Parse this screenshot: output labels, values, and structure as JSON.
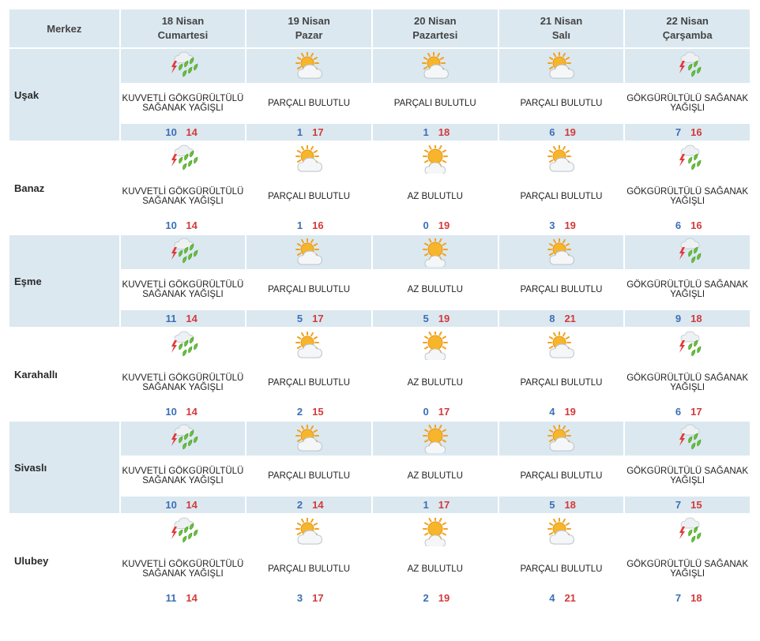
{
  "header": {
    "city_label": "Merkez",
    "days": [
      {
        "date": "18 Nisan",
        "weekday": "Cumartesi"
      },
      {
        "date": "19 Nisan",
        "weekday": "Pazar"
      },
      {
        "date": "20 Nisan",
        "weekday": "Pazartesi"
      },
      {
        "date": "21 Nisan",
        "weekday": "Salı"
      },
      {
        "date": "22 Nisan",
        "weekday": "Çarşamba"
      }
    ]
  },
  "colors": {
    "header_bg": "#dbe8f0",
    "low_temp": "#3b6fb6",
    "high_temp": "#d33a3a"
  },
  "rows": [
    {
      "city": "Uşak",
      "shaded": true,
      "days": [
        {
          "icon": "heavy-thunder-rain-icon",
          "desc": "KUVVETLİ GÖKGÜRÜLTÜLÜ SAĞANAK YAĞIŞLI",
          "low": "10",
          "high": "14"
        },
        {
          "icon": "partly-cloudy-icon",
          "desc": "PARÇALI BULUTLU",
          "low": "1",
          "high": "17"
        },
        {
          "icon": "partly-cloudy-icon",
          "desc": "PARÇALI BULUTLU",
          "low": "1",
          "high": "18"
        },
        {
          "icon": "partly-cloudy-icon",
          "desc": "PARÇALI BULUTLU",
          "low": "6",
          "high": "19"
        },
        {
          "icon": "thunder-rain-icon",
          "desc": "GÖKGÜRÜLTÜLÜ SAĞANAK YAĞIŞLI",
          "low": "7",
          "high": "16"
        }
      ]
    },
    {
      "city": "Banaz",
      "shaded": false,
      "days": [
        {
          "icon": "heavy-thunder-rain-icon",
          "desc": "KUVVETLİ GÖKGÜRÜLTÜLÜ SAĞANAK YAĞIŞLI",
          "low": "10",
          "high": "14"
        },
        {
          "icon": "partly-cloudy-icon",
          "desc": "PARÇALI BULUTLU",
          "low": "1",
          "high": "16"
        },
        {
          "icon": "mostly-sunny-icon",
          "desc": "AZ BULUTLU",
          "low": "0",
          "high": "19"
        },
        {
          "icon": "partly-cloudy-icon",
          "desc": "PARÇALI BULUTLU",
          "low": "3",
          "high": "19"
        },
        {
          "icon": "thunder-rain-icon",
          "desc": "GÖKGÜRÜLTÜLÜ SAĞANAK YAĞIŞLI",
          "low": "6",
          "high": "16"
        }
      ]
    },
    {
      "city": "Eşme",
      "shaded": true,
      "days": [
        {
          "icon": "heavy-thunder-rain-icon",
          "desc": "KUVVETLİ GÖKGÜRÜLTÜLÜ SAĞANAK YAĞIŞLI",
          "low": "11",
          "high": "14"
        },
        {
          "icon": "partly-cloudy-icon",
          "desc": "PARÇALI BULUTLU",
          "low": "5",
          "high": "17"
        },
        {
          "icon": "mostly-sunny-icon",
          "desc": "AZ BULUTLU",
          "low": "5",
          "high": "19"
        },
        {
          "icon": "partly-cloudy-icon",
          "desc": "PARÇALI BULUTLU",
          "low": "8",
          "high": "21"
        },
        {
          "icon": "thunder-rain-icon",
          "desc": "GÖKGÜRÜLTÜLÜ SAĞANAK YAĞIŞLI",
          "low": "9",
          "high": "18"
        }
      ]
    },
    {
      "city": "Karahallı",
      "shaded": false,
      "days": [
        {
          "icon": "heavy-thunder-rain-icon",
          "desc": "KUVVETLİ GÖKGÜRÜLTÜLÜ SAĞANAK YAĞIŞLI",
          "low": "10",
          "high": "14"
        },
        {
          "icon": "partly-cloudy-icon",
          "desc": "PARÇALI BULUTLU",
          "low": "2",
          "high": "15"
        },
        {
          "icon": "mostly-sunny-icon",
          "desc": "AZ BULUTLU",
          "low": "0",
          "high": "17"
        },
        {
          "icon": "partly-cloudy-icon",
          "desc": "PARÇALI BULUTLU",
          "low": "4",
          "high": "19"
        },
        {
          "icon": "thunder-rain-icon",
          "desc": "GÖKGÜRÜLTÜLÜ SAĞANAK YAĞIŞLI",
          "low": "6",
          "high": "17"
        }
      ]
    },
    {
      "city": "Sivaslı",
      "shaded": true,
      "days": [
        {
          "icon": "heavy-thunder-rain-icon",
          "desc": "KUVVETLİ GÖKGÜRÜLTÜLÜ SAĞANAK YAĞIŞLI",
          "low": "10",
          "high": "14"
        },
        {
          "icon": "partly-cloudy-icon",
          "desc": "PARÇALI BULUTLU",
          "low": "2",
          "high": "14"
        },
        {
          "icon": "mostly-sunny-icon",
          "desc": "AZ BULUTLU",
          "low": "1",
          "high": "17"
        },
        {
          "icon": "partly-cloudy-icon",
          "desc": "PARÇALI BULUTLU",
          "low": "5",
          "high": "18"
        },
        {
          "icon": "thunder-rain-icon",
          "desc": "GÖKGÜRÜLTÜLÜ SAĞANAK YAĞIŞLI",
          "low": "7",
          "high": "15"
        }
      ]
    },
    {
      "city": "Ulubey",
      "shaded": false,
      "days": [
        {
          "icon": "heavy-thunder-rain-icon",
          "desc": "KUVVETLİ GÖKGÜRÜLTÜLÜ SAĞANAK YAĞIŞLI",
          "low": "11",
          "high": "14"
        },
        {
          "icon": "partly-cloudy-icon",
          "desc": "PARÇALI BULUTLU",
          "low": "3",
          "high": "17"
        },
        {
          "icon": "mostly-sunny-icon",
          "desc": "AZ BULUTLU",
          "low": "2",
          "high": "19"
        },
        {
          "icon": "partly-cloudy-icon",
          "desc": "PARÇALI BULUTLU",
          "low": "4",
          "high": "21"
        },
        {
          "icon": "thunder-rain-icon",
          "desc": "GÖKGÜRÜLTÜLÜ SAĞANAK YAĞIŞLI",
          "low": "7",
          "high": "18"
        }
      ]
    }
  ]
}
